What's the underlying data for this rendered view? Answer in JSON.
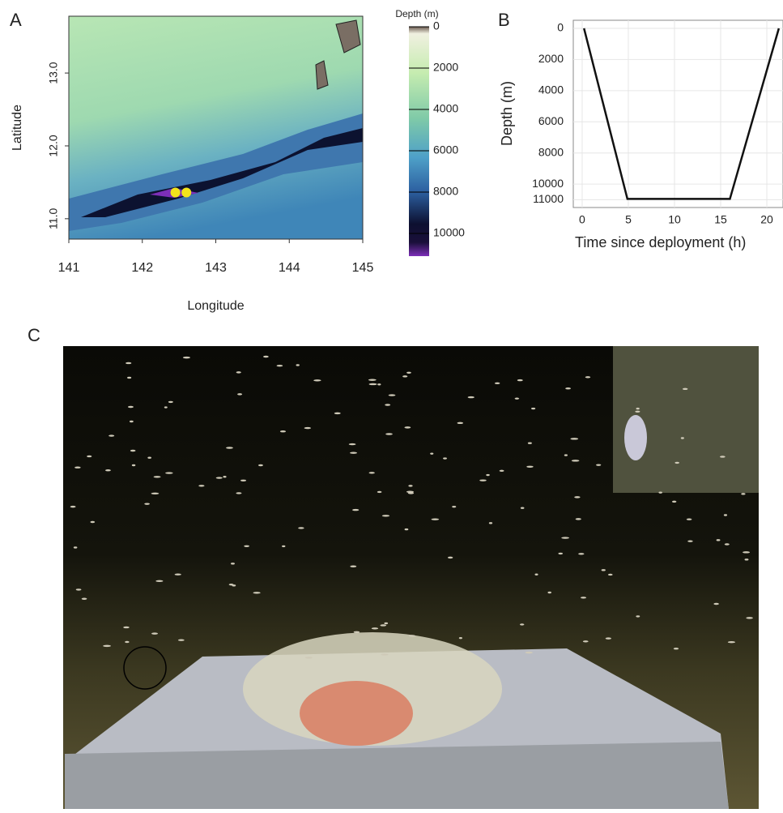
{
  "chart_data": [
    {
      "type": "map",
      "panel": "A",
      "xlabel": "Longitude",
      "ylabel": "Latitude",
      "xlim": [
        141,
        145
      ],
      "ylim": [
        10.72,
        13.78
      ],
      "xticks": [
        141,
        142,
        143,
        144,
        145
      ],
      "yticks": [
        {
          "value": 11,
          "label": "11.0"
        },
        {
          "value": 12,
          "label": "12.0"
        },
        {
          "value": 13,
          "label": "13.0"
        }
      ],
      "colorbar": {
        "title": "Depth (m)",
        "lim": [
          0,
          11100
        ],
        "ticks": [
          0,
          2000,
          4000,
          6000,
          8000,
          10000
        ]
      },
      "points": {
        "x": [
          142.45,
          142.6
        ],
        "y": [
          11.36,
          11.36
        ],
        "color": "#f2e41c"
      }
    },
    {
      "type": "line",
      "panel": "B",
      "xlabel": "Time since deployment (h)",
      "ylabel": "Depth (m)",
      "x": [
        0.2,
        4.9,
        16,
        21.3
      ],
      "values": [
        0,
        10950,
        10950,
        0
      ],
      "color": "#111111",
      "xlim": [
        -0.96,
        21.75
      ],
      "ylim": [
        -520,
        11500
      ],
      "y_reversed": true,
      "xticks": [
        0,
        5,
        10,
        15,
        20
      ],
      "yticks": [
        0,
        2000,
        4000,
        6000,
        8000,
        10000,
        11000
      ],
      "grid": true
    },
    {
      "type": "photo",
      "panel": "C"
    }
  ]
}
